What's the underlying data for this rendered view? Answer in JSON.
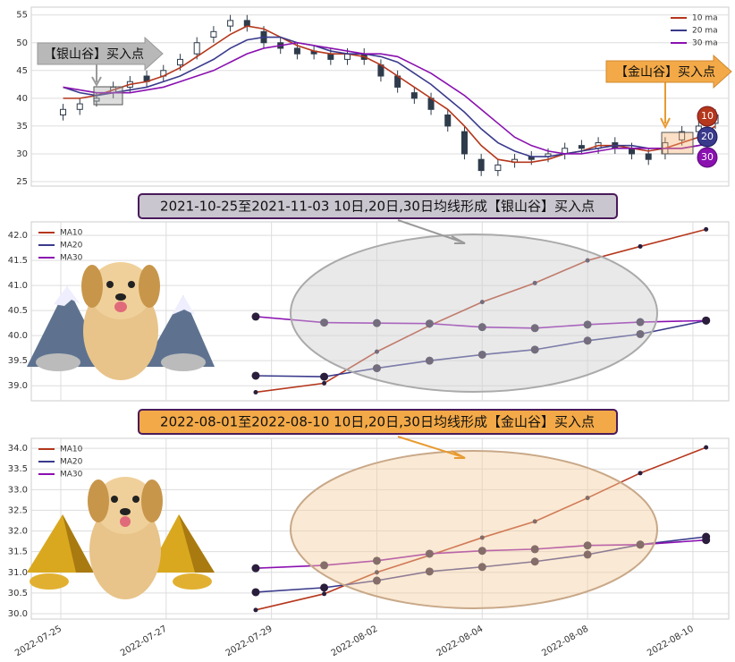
{
  "chart_data": [
    {
      "type": "candlestick",
      "open": [
        37,
        38,
        39.5,
        41,
        42,
        44,
        44,
        46,
        48,
        51,
        53,
        54,
        52,
        50,
        49,
        48.5,
        48,
        47,
        48,
        46,
        44,
        41,
        40,
        37,
        34,
        29,
        27,
        28.5,
        29.5,
        29.5,
        30,
        31.5,
        31,
        32,
        31,
        30,
        30,
        32.5,
        34,
        35.5
      ],
      "high": [
        39,
        40,
        41,
        43,
        44,
        45,
        46,
        48,
        51,
        53,
        55,
        55,
        53,
        51,
        50,
        49.5,
        49,
        49,
        49,
        47,
        45,
        42,
        41,
        38,
        35,
        30,
        29,
        30,
        30.5,
        31,
        32,
        32.5,
        33,
        33,
        32,
        31,
        33,
        35,
        36,
        38
      ],
      "low": [
        36,
        37,
        38.5,
        40,
        41,
        42,
        43,
        45,
        47,
        50,
        52,
        52,
        49,
        48,
        47,
        47,
        46,
        46,
        46,
        43,
        41,
        39,
        37,
        34,
        29,
        26,
        26,
        27.5,
        28,
        28.5,
        29,
        30,
        30,
        30,
        29,
        28,
        29,
        31.5,
        33,
        34.5
      ],
      "close": [
        38,
        39,
        40,
        42,
        43,
        43,
        45,
        47,
        50,
        52,
        54,
        53,
        50,
        49,
        48,
        48,
        47,
        48,
        47,
        44,
        42,
        40,
        38,
        35,
        30,
        27,
        28,
        29,
        29,
        30,
        31,
        31,
        32,
        31,
        30,
        29,
        32,
        34,
        35,
        37
      ],
      "candle_color": "#2e3b4b",
      "series": [
        {
          "name": "10 ma",
          "color": "#b5371c",
          "values": [
            40,
            40,
            40.5,
            41.5,
            42.5,
            43,
            44,
            45.5,
            47.5,
            49.5,
            51.5,
            53,
            52.5,
            51,
            49.5,
            48.5,
            48,
            48,
            47.5,
            46,
            44,
            42,
            40,
            38,
            35,
            31.5,
            29,
            28.5,
            28.5,
            29,
            30,
            30.5,
            31.5,
            31.5,
            31,
            30.5,
            31,
            32,
            33,
            35
          ]
        },
        {
          "name": "20 ma",
          "color": "#3a3a8c",
          "values": [
            42,
            41,
            40.5,
            41,
            41.5,
            42,
            43,
            44,
            45.5,
            47,
            49,
            50.5,
            51,
            51,
            50,
            49.5,
            48.5,
            48,
            48,
            47.5,
            46.5,
            44.5,
            42.5,
            40,
            37.5,
            34.5,
            32,
            30.5,
            29.5,
            29.5,
            30,
            30.5,
            31,
            31.5,
            31.5,
            31,
            31,
            31,
            31.5,
            32.5
          ]
        },
        {
          "name": "30 ma",
          "color": "#8a10b0",
          "values": [
            42,
            41.5,
            41,
            41,
            41,
            41.5,
            42,
            43,
            44,
            45,
            46.5,
            48,
            49,
            49.5,
            50,
            49.5,
            49,
            48.5,
            48,
            48,
            47.5,
            46,
            44.5,
            42.5,
            40.5,
            38,
            35.5,
            33,
            31.5,
            30.5,
            30,
            30,
            30.5,
            31,
            31,
            31,
            31,
            31,
            31.5,
            32
          ]
        }
      ],
      "xlim": [
        -1.9,
        39.8
      ],
      "ylim": [
        24.2,
        56.4
      ],
      "yticks": [
        25,
        30,
        35,
        40,
        45,
        50,
        55
      ],
      "grid": true,
      "legend": "upper right",
      "annotations": [
        "【银山谷】买入点",
        "【金山谷】买入点",
        "10",
        "20",
        "30"
      ]
    },
    {
      "type": "line",
      "title": "2021-10-25至2021-11-03 10日,20日,30日均线形成【银山谷】买入点",
      "x": [
        3.7,
        5,
        6,
        7,
        8,
        9,
        10,
        11,
        12.25
      ],
      "series": [
        {
          "name": "MA10",
          "color": "#b5371c",
          "values": [
            38.87,
            39.05,
            39.68,
            40.2,
            40.67,
            41.05,
            41.5,
            41.78,
            42.12
          ]
        },
        {
          "name": "MA20",
          "color": "#3a3a8c",
          "values": [
            39.2,
            39.18,
            39.35,
            39.5,
            39.62,
            39.72,
            39.9,
            40.03,
            40.3
          ]
        },
        {
          "name": "MA30",
          "color": "#8a10b0",
          "values": [
            40.38,
            40.26,
            40.25,
            40.24,
            40.17,
            40.15,
            40.22,
            40.27,
            40.3
          ]
        }
      ],
      "xlim": [
        -0.56,
        12.68
      ],
      "xticks": [
        0,
        2,
        4,
        6,
        8,
        10,
        12
      ],
      "ylim": [
        38.7,
        42.27
      ],
      "yticks": [
        {
          "value": 39,
          "label": "39.0"
        },
        39.5,
        {
          "value": 40,
          "label": "40.0"
        },
        40.5,
        {
          "value": 41,
          "label": "41.0"
        },
        41.5,
        {
          "value": 42,
          "label": "42.0"
        }
      ],
      "grid": true,
      "legend": "upper left"
    },
    {
      "type": "line",
      "title": "2022-08-01至2022-08-10 10日,20日,30日均线形成【金山谷】买入点",
      "x": [
        3.7,
        5,
        6,
        7,
        8,
        9,
        10,
        11,
        12.25
      ],
      "series": [
        {
          "name": "MA10",
          "color": "#b5371c",
          "values": [
            30.09,
            30.48,
            31.0,
            31.41,
            31.84,
            32.23,
            32.8,
            33.4,
            34.02
          ]
        },
        {
          "name": "MA20",
          "color": "#3a3a8c",
          "values": [
            30.52,
            30.63,
            30.8,
            31.02,
            31.13,
            31.26,
            31.43,
            31.67,
            31.86
          ]
        },
        {
          "name": "MA30",
          "color": "#8a10b0",
          "values": [
            31.1,
            31.17,
            31.28,
            31.45,
            31.52,
            31.56,
            31.65,
            31.67,
            31.78
          ]
        }
      ],
      "xlim": [
        -0.56,
        12.68
      ],
      "xticks": [
        {
          "value": 0,
          "label": "2022-07-25"
        },
        {
          "value": 2,
          "label": "2022-07-27"
        },
        {
          "value": 4,
          "label": "2022-07-29"
        },
        {
          "value": 6,
          "label": "2022-08-02"
        },
        {
          "value": 8,
          "label": "2022-08-04"
        },
        {
          "value": 10,
          "label": "2022-08-08"
        },
        {
          "value": 12,
          "label": "2022-08-10"
        }
      ],
      "ylim": [
        29.87,
        34.24
      ],
      "yticks": [
        {
          "value": 30,
          "label": "30.0"
        },
        30.5,
        {
          "value": 31,
          "label": "31.0"
        },
        31.5,
        {
          "value": 32,
          "label": "32.0"
        },
        32.5,
        {
          "value": 33,
          "label": "33.0"
        },
        33.5,
        {
          "value": 34,
          "label": "34.0"
        }
      ],
      "grid": true,
      "legend": "upper left"
    }
  ]
}
